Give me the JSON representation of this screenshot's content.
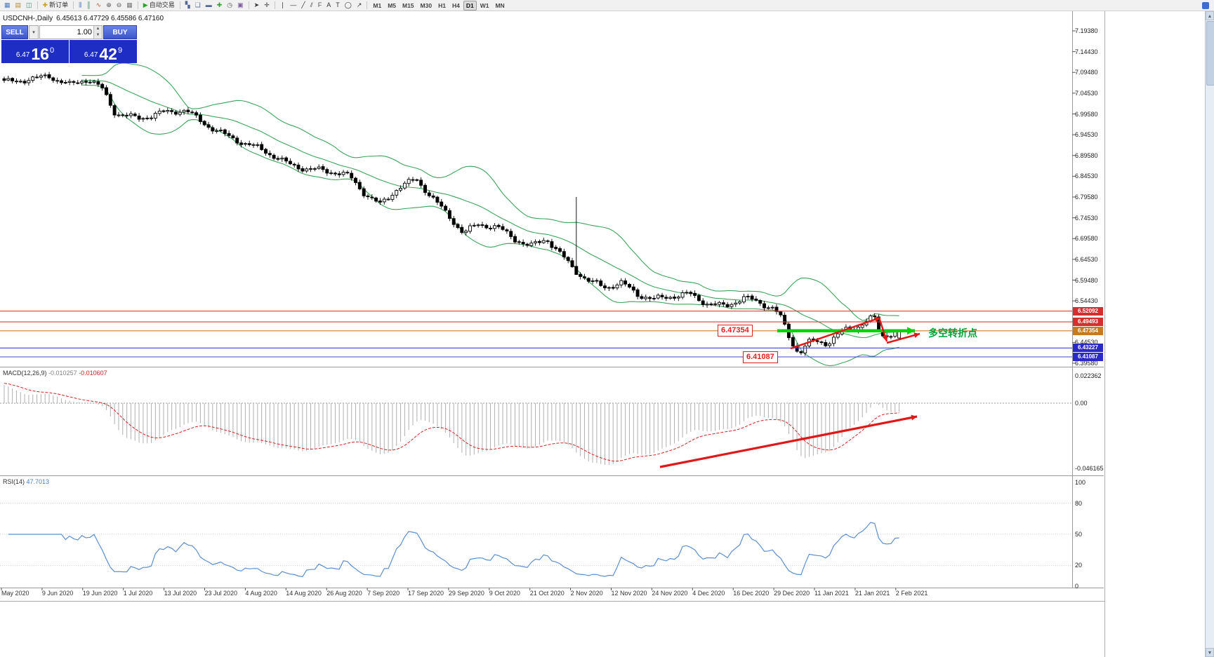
{
  "toolbar": {
    "groups": [
      {
        "items": [
          {
            "name": "new-chart-icon",
            "glyph": "▦",
            "color": "#4a78b8"
          },
          {
            "name": "profiles-icon",
            "glyph": "▤",
            "color": "#b08a3e"
          },
          {
            "name": "market-watch-icon",
            "glyph": "◫",
            "color": "#3e8e6a"
          }
        ]
      },
      {
        "items": [
          {
            "name": "new-order-button",
            "glyph": "✚",
            "color": "#d4a017",
            "label": "新订单"
          }
        ]
      },
      {
        "items": [
          {
            "name": "bar-chart-icon",
            "glyph": "⫼",
            "color": "#4a78b8"
          },
          {
            "name": "candlestick-chart-icon",
            "glyph": "║",
            "color": "#3e8e6a"
          },
          {
            "name": "line-chart-icon",
            "glyph": "∿",
            "color": "#b06030"
          },
          {
            "name": "zoom-in-icon",
            "glyph": "⊕",
            "color": "#555555"
          },
          {
            "name": "zoom-out-icon",
            "glyph": "⊖",
            "color": "#555555"
          },
          {
            "name": "chart-grid-icon",
            "glyph": "▦",
            "color": "#777777"
          }
        ]
      },
      {
        "items": [
          {
            "name": "autotrading-button",
            "glyph": "▶",
            "color": "#2aa52a",
            "label": "自动交易"
          }
        ]
      },
      {
        "items": [
          {
            "name": "tile-windows-icon",
            "glyph": "▚",
            "color": "#556699"
          },
          {
            "name": "cascade-windows-icon",
            "glyph": "❏",
            "color": "#556699"
          },
          {
            "name": "arrange-windows-icon",
            "glyph": "▬",
            "color": "#556699"
          },
          {
            "name": "indicators-icon",
            "glyph": "✚",
            "color": "#2aa52a"
          },
          {
            "name": "periods-icon",
            "glyph": "◷",
            "color": "#555555"
          },
          {
            "name": "templates-icon",
            "glyph": "▣",
            "color": "#7a5c9e"
          }
        ]
      },
      {
        "items": [
          {
            "name": "cursor-icon",
            "glyph": "➤",
            "color": "#333333"
          },
          {
            "name": "crosshair-icon",
            "glyph": "✛",
            "color": "#333333"
          }
        ]
      },
      {
        "items": [
          {
            "name": "vertical-line-icon",
            "glyph": "❘",
            "color": "#333333"
          },
          {
            "name": "horizontal-line-icon",
            "glyph": "―",
            "color": "#333333"
          },
          {
            "name": "trendline-icon",
            "glyph": "╱",
            "color": "#333333"
          },
          {
            "name": "channel-icon",
            "glyph": "⫽",
            "color": "#333333"
          },
          {
            "name": "fibonacci-icon",
            "glyph": "F",
            "color": "#555555"
          },
          {
            "name": "text-icon",
            "glyph": "A",
            "color": "#333333"
          },
          {
            "name": "text-label-icon",
            "glyph": "T",
            "color": "#333333"
          },
          {
            "name": "shapes-icon",
            "glyph": "◯",
            "color": "#333333"
          },
          {
            "name": "arrows-icon",
            "glyph": "↗",
            "color": "#333333"
          }
        ]
      }
    ],
    "timeframes": {
      "items": [
        "M1",
        "M5",
        "M15",
        "M30",
        "H1",
        "H4",
        "D1",
        "W1",
        "MN"
      ],
      "active": "D1"
    }
  },
  "chart": {
    "title": "USDCNH-,Daily",
    "ohlc": "6.45613 6.47729 6.45586 6.47160"
  },
  "trade_panel": {
    "sell_label": "SELL",
    "buy_label": "BUY",
    "volume": "1.00",
    "dropdown_glyph": "▾",
    "spin_up_glyph": "▲",
    "spin_down_glyph": "▼",
    "sell_price": {
      "main": "6.47",
      "big": "16",
      "pip": "0"
    },
    "buy_price": {
      "main": "6.47",
      "big": "42",
      "pip": "9"
    }
  },
  "macd": {
    "name": "MACD(12,26,9)",
    "value": "-0.010257",
    "signal": "-0.010607"
  },
  "rsi": {
    "name": "RSI(14)",
    "value": "47.7013"
  },
  "annotations": {
    "support_label": "6.47354",
    "support2_label": "6.41087",
    "turning_point": "多空转折点"
  },
  "chart_data": {
    "type": "candlestick",
    "symbol": "USDCNH-",
    "period": "Daily",
    "current_ohlc": {
      "open": 6.45613,
      "high": 6.47729,
      "low": 6.45586,
      "close": 6.4716
    },
    "visible_price_range": {
      "top": 7.2409,
      "bottom": 6.3874
    },
    "candle_count": 220,
    "waypoints": [
      [
        0.0,
        7.066
      ],
      [
        0.022,
        7.076
      ],
      [
        0.05,
        7.09
      ],
      [
        0.072,
        7.062
      ],
      [
        0.094,
        7.074
      ],
      [
        0.11,
        7.052
      ],
      [
        0.124,
        6.999
      ],
      [
        0.152,
        6.986
      ],
      [
        0.18,
        6.994
      ],
      [
        0.203,
        7.002
      ],
      [
        0.22,
        6.98
      ],
      [
        0.243,
        6.95
      ],
      [
        0.268,
        6.92
      ],
      [
        0.292,
        6.903
      ],
      [
        0.315,
        6.88
      ],
      [
        0.34,
        6.863
      ],
      [
        0.363,
        6.853
      ],
      [
        0.386,
        6.843
      ],
      [
        0.403,
        6.806
      ],
      [
        0.42,
        6.78
      ],
      [
        0.44,
        6.816
      ],
      [
        0.46,
        6.833
      ],
      [
        0.478,
        6.793
      ],
      [
        0.498,
        6.749
      ],
      [
        0.513,
        6.713
      ],
      [
        0.53,
        6.729
      ],
      [
        0.55,
        6.719
      ],
      [
        0.57,
        6.693
      ],
      [
        0.588,
        6.679
      ],
      [
        0.606,
        6.699
      ],
      [
        0.622,
        6.657
      ],
      [
        0.638,
        6.614
      ],
      [
        0.655,
        6.587
      ],
      [
        0.672,
        6.579
      ],
      [
        0.69,
        6.593
      ],
      [
        0.708,
        6.563
      ],
      [
        0.726,
        6.546
      ],
      [
        0.746,
        6.553
      ],
      [
        0.766,
        6.563
      ],
      [
        0.786,
        6.543
      ],
      [
        0.806,
        6.533
      ],
      [
        0.826,
        6.549
      ],
      [
        0.843,
        6.539
      ],
      [
        0.86,
        6.529
      ],
      [
        0.868,
        6.508
      ],
      [
        0.879,
        6.452
      ],
      [
        0.888,
        6.424
      ],
      [
        0.9,
        6.447
      ],
      [
        0.92,
        6.44
      ],
      [
        0.936,
        6.47
      ],
      [
        0.95,
        6.48
      ],
      [
        0.962,
        6.5
      ],
      [
        0.972,
        6.51
      ],
      [
        0.98,
        6.462
      ],
      [
        0.988,
        6.467
      ],
      [
        1.0,
        6.4716
      ]
    ],
    "spikes": [
      {
        "i": 140,
        "high": 6.795,
        "low": 6.612
      }
    ],
    "last_candle": {
      "o": 6.45613,
      "h": 6.47729,
      "l": 6.45586,
      "c": 6.4716
    },
    "bollinger": {
      "period": 20,
      "deviation": 2,
      "color": "#3da35c"
    },
    "price_axis_labels": [
      "7.19380",
      "7.14430",
      "7.09480",
      "7.04530",
      "6.99580",
      "6.94530",
      "6.89580",
      "6.84530",
      "6.79580",
      "6.74530",
      "6.69580",
      "6.64530",
      "6.59480",
      "6.54430",
      "6.49480",
      "6.44530",
      "6.39580"
    ],
    "key_levels": [
      {
        "value": 6.52092,
        "label": "6.52092",
        "color": "#e23a3a",
        "badge": "#d42f2f"
      },
      {
        "value": 6.49493,
        "label": "6.49493",
        "color": "#e23a3a",
        "badge": "#d42f2f"
      },
      {
        "value": 6.47354,
        "label": "6.47354",
        "color": "#cc7a22",
        "badge": "#c87a1e"
      },
      {
        "value": 6.43227,
        "label": "6.43227",
        "color": "#4040dd",
        "badge": "#2a2ac8"
      },
      {
        "value": 6.41087,
        "label": "6.41087",
        "color": "#4040dd",
        "badge": "#2a2ac8"
      }
    ],
    "macd_axis_labels": [
      "0.022362",
      "0.00",
      "-0.046165"
    ],
    "rsi_axis": {
      "labels": [
        "100",
        "80",
        "50",
        "20",
        "0"
      ],
      "values": [
        100,
        80,
        50,
        20,
        0
      ]
    },
    "dates": [
      "May 2020",
      "9 Jun 2020",
      "19 Jun 2020",
      "1 Jul 2020",
      "13 Jul 2020",
      "23 Jul 2020",
      "4 Aug 2020",
      "14 Aug 2020",
      "26 Aug 2020",
      "7 Sep 2020",
      "17 Sep 2020",
      "29 Sep 2020",
      "9 Oct 2020",
      "21 Oct 2020",
      "2 Nov 2020",
      "12 Nov 2020",
      "24 Nov 2020",
      "4 Dec 2020",
      "16 Dec 2020",
      "29 Dec 2020",
      "11 Jan 2021",
      "21 Jan 2021",
      "2 Feb 2021"
    ]
  }
}
